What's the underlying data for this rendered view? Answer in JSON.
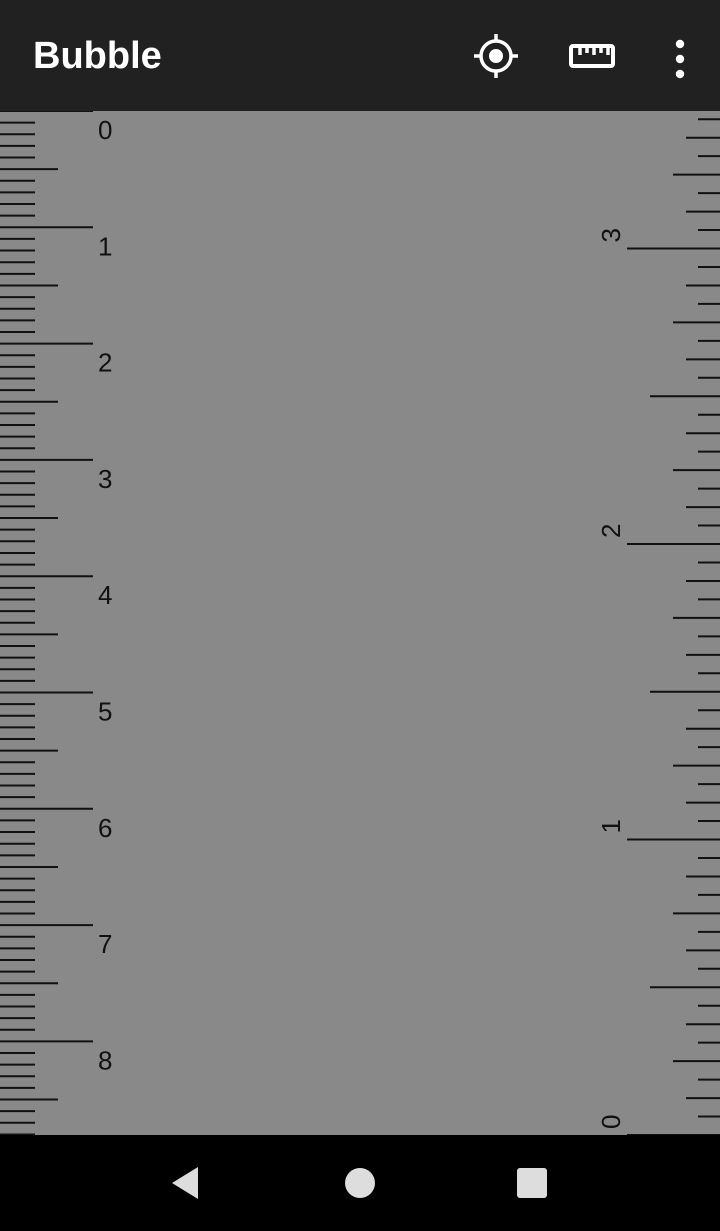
{
  "app": {
    "title": "Bubble"
  },
  "toolbar": {
    "actions": [
      {
        "name": "calibrate-target",
        "icon": "crosshair-target-icon"
      },
      {
        "name": "ruler",
        "icon": "ruler-icon"
      },
      {
        "name": "more-options",
        "icon": "more-vert-icon"
      }
    ]
  },
  "left_ruler": {
    "unit": "cm",
    "labels": [
      "0",
      "1",
      "2",
      "3",
      "4",
      "5",
      "6",
      "7",
      "8"
    ]
  },
  "right_ruler": {
    "unit": "in",
    "labels": [
      "0",
      "1",
      "2",
      "3"
    ]
  },
  "navigation": {
    "buttons": [
      {
        "name": "back",
        "icon": "back-triangle-icon"
      },
      {
        "name": "home",
        "icon": "home-circle-icon"
      },
      {
        "name": "recents",
        "icon": "recents-square-icon"
      }
    ]
  },
  "colors": {
    "appbar": "#212121",
    "canvas": "#898989",
    "tick": "#111111",
    "navbar": "#000000",
    "nav_icon": "#dddddd"
  }
}
